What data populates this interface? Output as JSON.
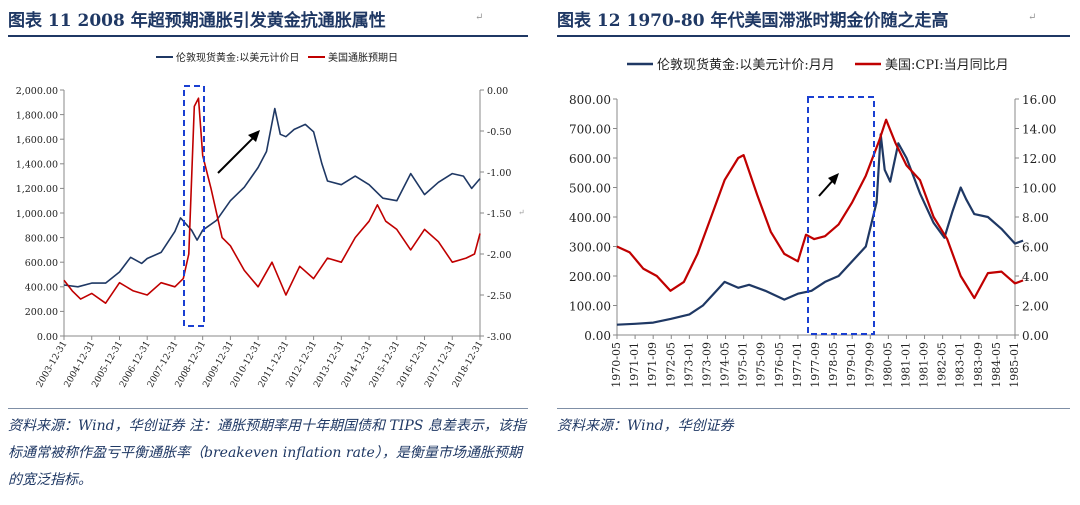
{
  "figure11": {
    "title": "图表 11   2008 年超预期通胀引发黄金抗通胀属性",
    "source": "资料来源：Wind，华创证券  注：通胀预期率用十年期国债和 TIPS 息差表示，该指标通常被称作盈亏平衡通胀率（breakeven inflation rate），是衡量市场通胀预期的宽泛指标。"
  },
  "figure12": {
    "title": "图表 12   1970-80 年代美国滞涨时期金价随之走高",
    "source": "资料来源：Wind，华创证券"
  },
  "chart_data": [
    {
      "type": "line",
      "title": "2008 年超预期通胀引发黄金抗通胀属性",
      "legend": [
        "伦敦现货黄金:以美元计价日",
        "美国通胀预期日"
      ],
      "legend_position": "top",
      "x_tick_labels": [
        "2003-12-31",
        "2004-12-31",
        "2005-12-31",
        "2006-12-31",
        "2007-12-31",
        "2008-12-31",
        "2009-12-31",
        "2010-12-31",
        "2011-12-31",
        "2012-12-31",
        "2013-12-31",
        "2014-12-31",
        "2015-12-31",
        "2016-12-31",
        "2017-12-31",
        "2018-12-31"
      ],
      "y_left_ticks": [
        "0.00",
        "200.00",
        "400.00",
        "600.00",
        "800.00",
        "1,000.00",
        "1,200.00",
        "1,400.00",
        "1,600.00",
        "1,800.00",
        "2,000.00"
      ],
      "y_right_ticks": [
        "-3.00",
        "-2.50",
        "-2.00",
        "-1.50",
        "-1.00",
        "-0.50",
        "0.00"
      ],
      "ylim_left": [
        0,
        2000
      ],
      "ylim_right": [
        -3.0,
        0.0
      ],
      "series": [
        {
          "name": "伦敦现货黄金:以美元计价日",
          "axis": "left",
          "color": "#1f3864",
          "x": [
            2004.0,
            2004.5,
            2005.0,
            2005.5,
            2006.0,
            2006.4,
            2006.8,
            2007.0,
            2007.5,
            2008.0,
            2008.2,
            2008.6,
            2008.8,
            2009.0,
            2009.5,
            2010.0,
            2010.5,
            2011.0,
            2011.3,
            2011.6,
            2011.8,
            2012.0,
            2012.3,
            2012.7,
            2013.0,
            2013.3,
            2013.5,
            2014.0,
            2014.5,
            2015.0,
            2015.5,
            2016.0,
            2016.5,
            2017.0,
            2017.5,
            2018.0,
            2018.4,
            2018.7,
            2019.0
          ],
          "y": [
            415,
            400,
            430,
            430,
            520,
            640,
            590,
            630,
            680,
            850,
            960,
            860,
            780,
            860,
            940,
            1100,
            1210,
            1370,
            1500,
            1850,
            1640,
            1620,
            1680,
            1720,
            1660,
            1400,
            1260,
            1230,
            1300,
            1230,
            1120,
            1100,
            1320,
            1150,
            1250,
            1320,
            1300,
            1200,
            1280
          ]
        },
        {
          "name": "美国通胀预期日",
          "axis": "right",
          "color": "#c00000",
          "x": [
            2004.0,
            2004.3,
            2004.6,
            2005.0,
            2005.5,
            2006.0,
            2006.5,
            2007.0,
            2007.5,
            2008.0,
            2008.3,
            2008.5,
            2008.7,
            2008.85,
            2009.0,
            2009.3,
            2009.7,
            2010.0,
            2010.5,
            2011.0,
            2011.5,
            2012.0,
            2012.5,
            2013.0,
            2013.5,
            2014.0,
            2014.5,
            2015.0,
            2015.3,
            2015.6,
            2016.0,
            2016.5,
            2017.0,
            2017.5,
            2018.0,
            2018.5,
            2018.8,
            2019.0
          ],
          "y": [
            -2.32,
            -2.45,
            -2.55,
            -2.48,
            -2.6,
            -2.35,
            -2.45,
            -2.5,
            -2.35,
            -2.4,
            -2.3,
            -2.0,
            -0.2,
            -0.1,
            -0.8,
            -1.2,
            -1.8,
            -1.9,
            -2.2,
            -2.4,
            -2.1,
            -2.5,
            -2.15,
            -2.3,
            -2.05,
            -2.1,
            -1.8,
            -1.6,
            -1.4,
            -1.6,
            -1.7,
            -1.95,
            -1.7,
            -1.85,
            -2.1,
            -2.05,
            -2.0,
            -1.75
          ]
        }
      ]
    },
    {
      "type": "line",
      "title": "1970-80 年代美国滞涨时期金价随之走高",
      "legend": [
        "伦敦现货黄金:以美元计价:月月",
        "美国:CPI:当月同比月"
      ],
      "legend_position": "top",
      "x_tick_labels": [
        "1970-05",
        "1971-01",
        "1971-09",
        "1972-05",
        "1973-01",
        "1973-09",
        "1974-05",
        "1975-01",
        "1975-09",
        "1976-05",
        "1977-01",
        "1977-09",
        "1978-05",
        "1979-01",
        "1979-09",
        "1980-05",
        "1981-01",
        "1981-09",
        "1982-05",
        "1983-01",
        "1983-09",
        "1984-05",
        "1985-01"
      ],
      "y_left_ticks": [
        "0.00",
        "100.00",
        "200.00",
        "300.00",
        "400.00",
        "500.00",
        "600.00",
        "700.00",
        "800.00"
      ],
      "y_right_ticks": [
        "0.00",
        "2.00",
        "4.00",
        "6.00",
        "8.00",
        "10.00",
        "12.00",
        "14.00",
        "16.00"
      ],
      "ylim_left": [
        0,
        800
      ],
      "ylim_right": [
        0,
        16
      ],
      "series": [
        {
          "name": "伦敦现货黄金:以美元计价:月月",
          "axis": "left",
          "color": "#1f3864",
          "x": [
            1970.33,
            1971.0,
            1971.67,
            1972.33,
            1973.0,
            1973.5,
            1974.0,
            1974.3,
            1974.8,
            1975.2,
            1975.8,
            1976.5,
            1977.0,
            1977.5,
            1978.0,
            1978.5,
            1979.0,
            1979.5,
            1979.9,
            1980.05,
            1980.2,
            1980.4,
            1980.7,
            1981.0,
            1981.5,
            1982.0,
            1982.4,
            1982.7,
            1983.0,
            1983.2,
            1983.5,
            1984.0,
            1984.5,
            1985.0,
            1985.3
          ],
          "y": [
            35,
            38,
            42,
            55,
            70,
            100,
            150,
            180,
            160,
            170,
            150,
            120,
            140,
            150,
            180,
            200,
            250,
            300,
            450,
            680,
            560,
            520,
            650,
            600,
            480,
            380,
            330,
            420,
            500,
            460,
            410,
            400,
            360,
            310,
            320
          ]
        },
        {
          "name": "美国:CPI:当月同比月",
          "axis": "right",
          "color": "#c00000",
          "x": [
            1970.33,
            1970.8,
            1971.3,
            1971.8,
            1972.3,
            1972.8,
            1973.3,
            1973.8,
            1974.3,
            1974.8,
            1975.0,
            1975.5,
            1976.0,
            1976.5,
            1977.0,
            1977.3,
            1977.6,
            1978.0,
            1978.5,
            1979.0,
            1979.5,
            1980.0,
            1980.25,
            1980.6,
            1981.0,
            1981.5,
            1982.0,
            1982.5,
            1983.0,
            1983.5,
            1984.0,
            1984.5,
            1985.0,
            1985.3
          ],
          "y": [
            6.0,
            5.6,
            4.5,
            4.0,
            3.0,
            3.6,
            5.5,
            8.0,
            10.5,
            12.0,
            12.2,
            9.5,
            7.0,
            5.5,
            5.0,
            6.8,
            6.5,
            6.7,
            7.5,
            9.0,
            10.8,
            13.2,
            14.6,
            13.0,
            11.5,
            10.5,
            8.0,
            6.5,
            4.0,
            2.5,
            4.2,
            4.3,
            3.5,
            3.7
          ]
        }
      ]
    }
  ]
}
